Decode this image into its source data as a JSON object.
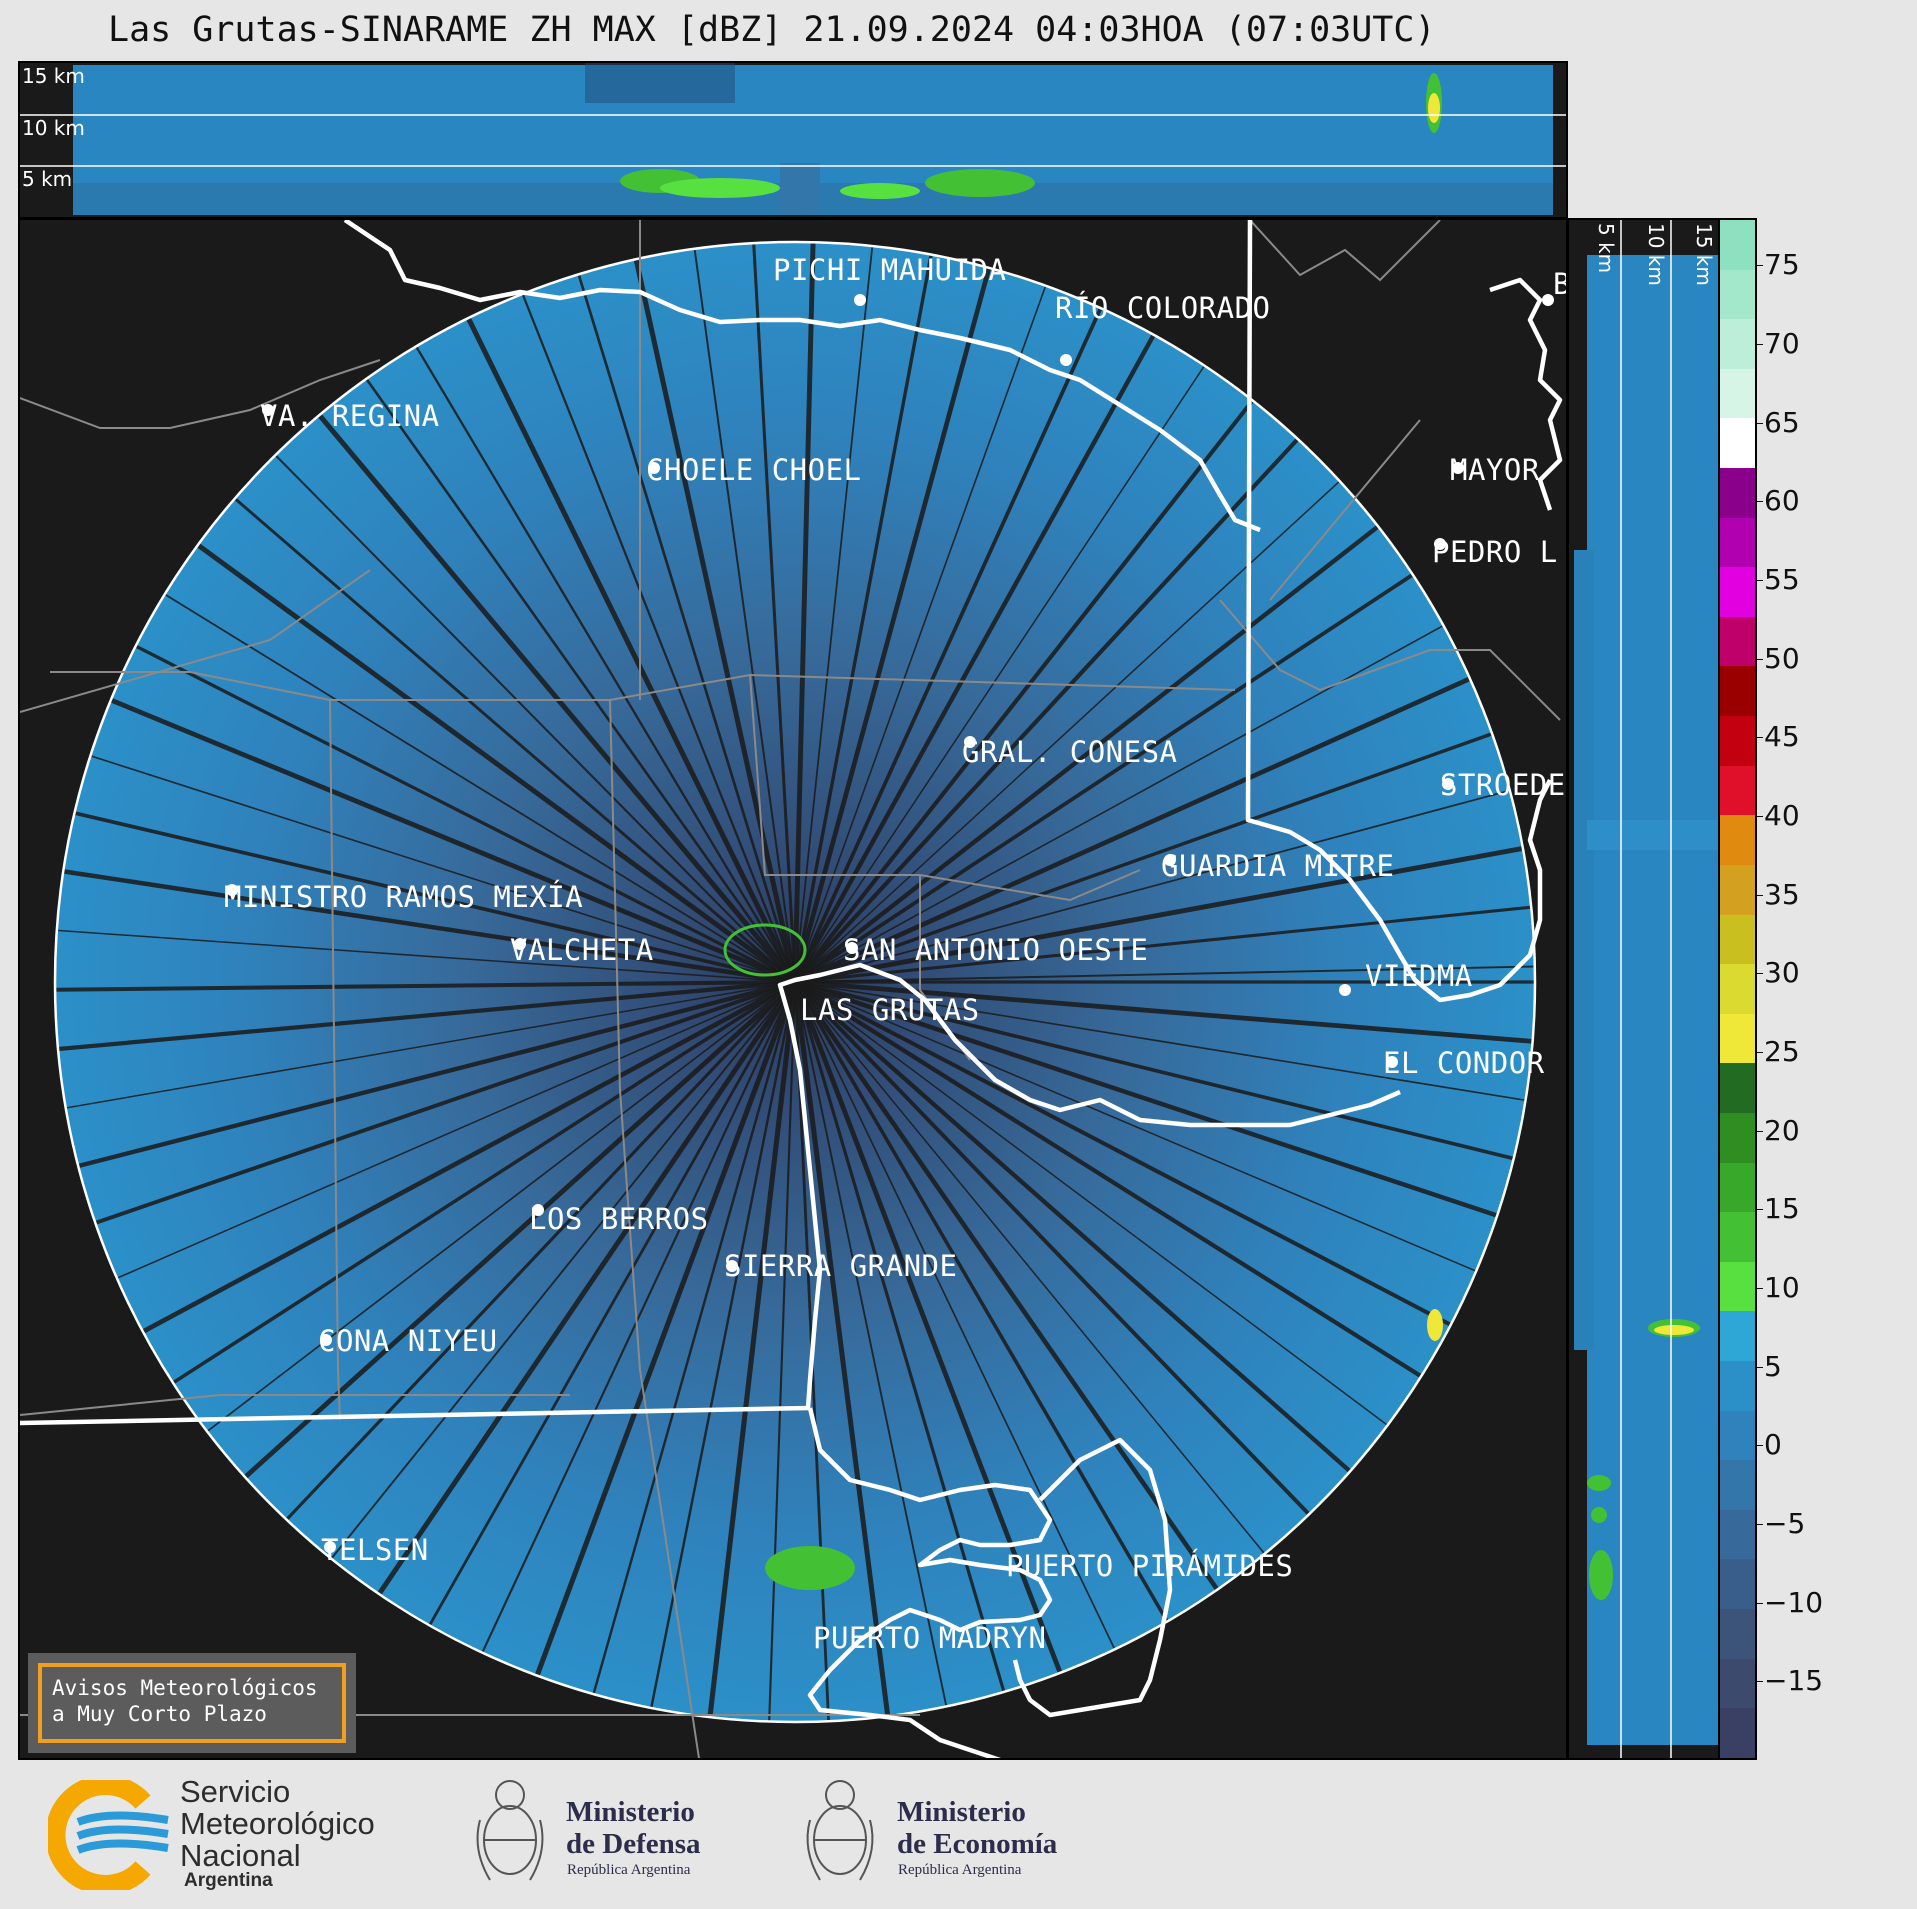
{
  "title": "Las Grutas-SINARAME ZH MAX [dBZ] 21.09.2024 04:03HOA (07:03UTC)",
  "top_panel": {
    "km_labels": [
      "15 km",
      "10 km",
      "5 km"
    ]
  },
  "side_panel": {
    "km_labels": [
      "5 km",
      "10 km",
      "15 km"
    ]
  },
  "cities": [
    {
      "name": "PICHI MAHUIDA"
    },
    {
      "name": "RÍO COLORADO"
    },
    {
      "name": "VA. REGINA"
    },
    {
      "name": "CHOELE CHOEL"
    },
    {
      "name": "MAYOR"
    },
    {
      "name": "PEDRO L"
    },
    {
      "name": "GRAL. CONESA"
    },
    {
      "name": "STROEDE"
    },
    {
      "name": "GUARDIA MITRE"
    },
    {
      "name": "MINISTRO RAMOS MEXÍA"
    },
    {
      "name": "VALCHETA"
    },
    {
      "name": "SAN ANTONIO OESTE"
    },
    {
      "name": "VIEDMA"
    },
    {
      "name": "LAS GRUTAS"
    },
    {
      "name": "EL CONDOR"
    },
    {
      "name": "LOS BERROS"
    },
    {
      "name": "SIERRA GRANDE"
    },
    {
      "name": "CONA NIYEU"
    },
    {
      "name": "TELSEN"
    },
    {
      "name": "PUERTO PIRÁMIDES"
    },
    {
      "name": "PUERTO MADRYN"
    },
    {
      "name": "B"
    }
  ],
  "colorbar": {
    "unit": "dBZ",
    "ticks": [
      "75",
      "70",
      "65",
      "60",
      "55",
      "50",
      "45",
      "40",
      "35",
      "30",
      "25",
      "20",
      "15",
      "10",
      "5",
      "0",
      "−5",
      "−10",
      "−15"
    ],
    "colors": [
      "#8de0c0",
      "#a4e8cc",
      "#bdeed9",
      "#d6f5e6",
      "#ffffff",
      "#8a008a",
      "#b000b0",
      "#e000e0",
      "#c0006a",
      "#9a0000",
      "#c20010",
      "#e0102a",
      "#e08a10",
      "#d4a020",
      "#c9c020",
      "#dada30",
      "#f0e838",
      "#226b22",
      "#2e8e22",
      "#38a82a",
      "#44c034",
      "#58e040",
      "#2ea6d6",
      "#2c90c8",
      "#2f82bc",
      "#3276aa",
      "#376a9a",
      "#3a5e8a",
      "#3c537a",
      "#3c4a6e",
      "#3a4064"
    ]
  },
  "notice": {
    "line1": "Avisos Meteorológicos",
    "line2": "a Muy Corto Plazo"
  },
  "logos": {
    "smn": {
      "line1": "Servicio",
      "line2": "Meteorológico",
      "line3": "Nacional",
      "sub": "Argentina"
    },
    "defensa": {
      "line1": "Ministerio",
      "line2": "de Defensa",
      "sub": "República Argentina"
    },
    "economia": {
      "line1": "Ministerio",
      "line2": "de Economía",
      "sub": "República Argentina"
    }
  }
}
